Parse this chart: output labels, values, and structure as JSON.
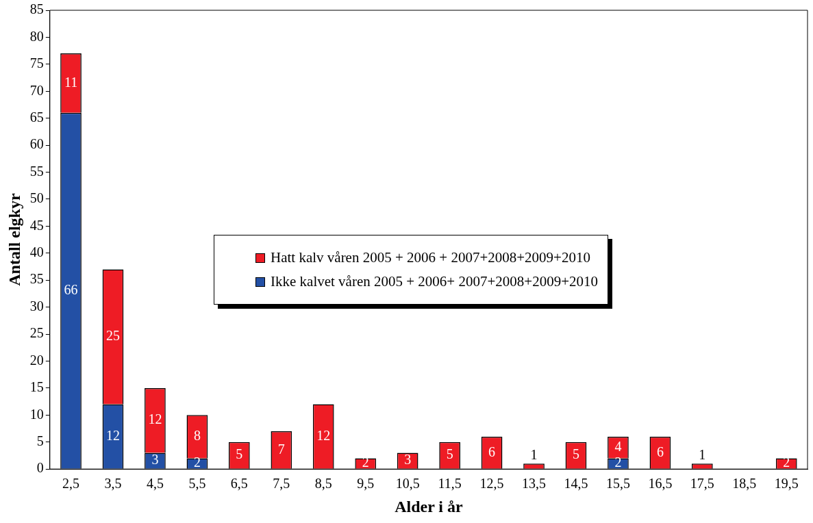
{
  "chart_data": {
    "type": "bar",
    "xlabel": "Alder i år",
    "ylabel": "Antall elgkyr",
    "categories": [
      "2,5",
      "3,5",
      "4,5",
      "5,5",
      "6,5",
      "7,5",
      "8,5",
      "9,5",
      "10,5",
      "11,5",
      "12,5",
      "13,5",
      "14,5",
      "15,5",
      "16,5",
      "17,5",
      "18,5",
      "19,5"
    ],
    "series": [
      {
        "name": "Ikke kalvet våren 2005 + 2006+ 2007+2008+2009+2010",
        "color": "#2350a5",
        "values": [
          66,
          12,
          3,
          2,
          0,
          0,
          0,
          0,
          0,
          0,
          0,
          0,
          0,
          2,
          0,
          0,
          0,
          0
        ],
        "value_labels": [
          "66",
          "12",
          "3",
          "2",
          null,
          null,
          null,
          null,
          null,
          null,
          null,
          null,
          null,
          "2",
          null,
          null,
          null,
          null
        ]
      },
      {
        "name": "Hatt kalv våren 2005 + 2006 + 2007+2008+2009+2010",
        "color": "#ee1c25",
        "values": [
          11,
          25,
          12,
          8,
          5,
          7,
          12,
          2,
          3,
          5,
          6,
          1,
          5,
          4,
          6,
          1,
          0,
          2
        ],
        "value_labels": [
          "11",
          "25",
          "12",
          "8",
          "5",
          "7",
          "12",
          "2",
          "3",
          "5",
          "6",
          "1",
          "5",
          "4",
          "6",
          "1",
          null,
          "2"
        ]
      }
    ],
    "stacked": true,
    "ylim": [
      0,
      85
    ],
    "yticks": [
      0,
      5,
      10,
      15,
      20,
      25,
      30,
      35,
      40,
      45,
      50,
      55,
      60,
      65,
      70,
      75,
      80,
      85
    ],
    "grid": false,
    "legend": "right"
  }
}
